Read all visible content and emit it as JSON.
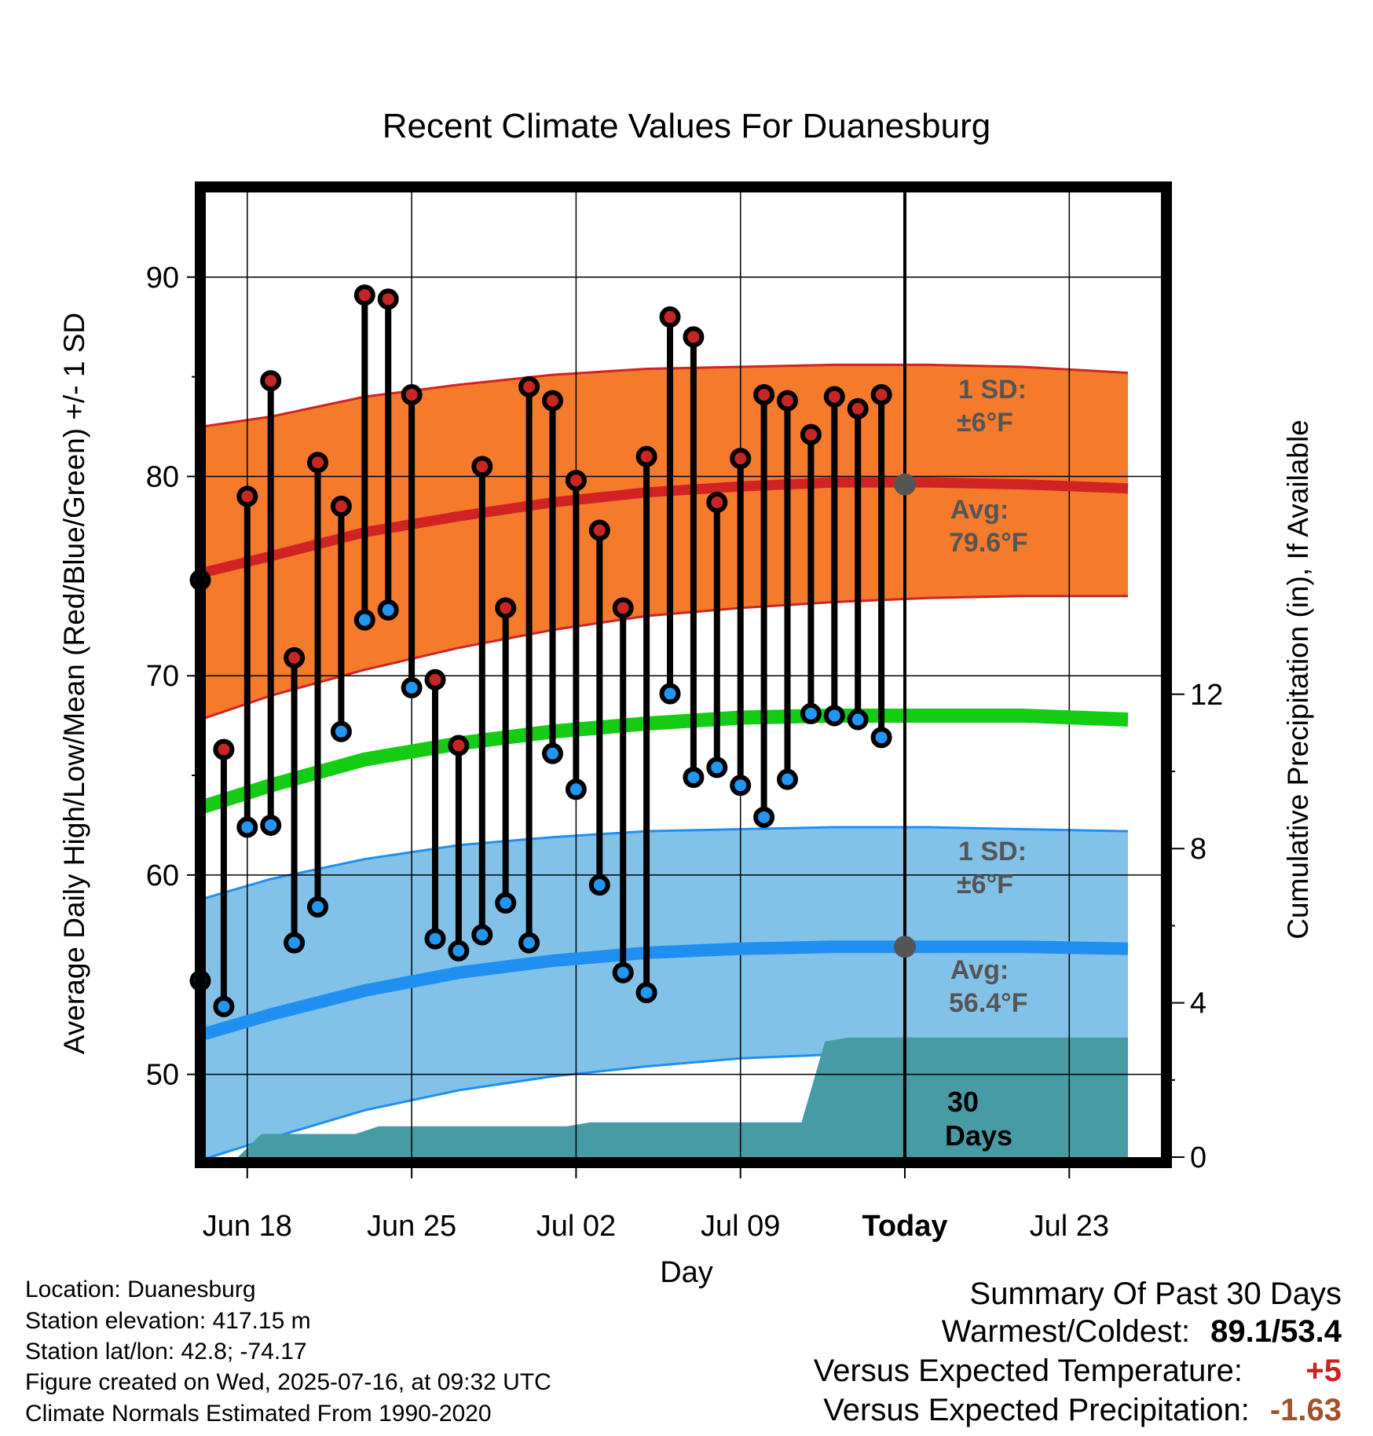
{
  "chart_data": {
    "type": "line",
    "title": "Recent Climate Values For Duanesburg",
    "xlabel": "Day",
    "ylabel": "Average Daily High/Low/Mean (Red/Blue/Green) +/- 1 SD",
    "y2label": "Cumulative Precipitation (in), If Available",
    "ylim": [
      45,
      95
    ],
    "y_ticks": [
      "50",
      "60",
      "70",
      "80",
      "90"
    ],
    "y2lim": [
      0,
      24
    ],
    "y2_ticks": [
      "0",
      "4",
      "8",
      "12"
    ],
    "x_ticks": [
      "Jun 18",
      "Jun 25",
      "Jul 02",
      "Jul 09",
      "Today",
      "Jul 23"
    ],
    "today_label": "Today",
    "period_label": [
      "30",
      "Days"
    ],
    "days": [
      "Jun 16",
      "Jun 17",
      "Jun 18",
      "Jun 19",
      "Jun 20",
      "Jun 21",
      "Jun 22",
      "Jun 23",
      "Jun 24",
      "Jun 25",
      "Jun 26",
      "Jun 27",
      "Jun 28",
      "Jun 29",
      "Jun 30",
      "Jul 01",
      "Jul 02",
      "Jul 03",
      "Jul 04",
      "Jul 05",
      "Jul 06",
      "Jul 07",
      "Jul 08",
      "Jul 09",
      "Jul 10",
      "Jul 11",
      "Jul 12",
      "Jul 13",
      "Jul 14",
      "Jul 15"
    ],
    "highs": [
      74.8,
      66.3,
      79.0,
      84.8,
      70.9,
      80.7,
      78.5,
      89.1,
      88.9,
      84.1,
      69.8,
      66.5,
      80.5,
      73.4,
      84.5,
      83.8,
      79.8,
      77.3,
      73.4,
      81.0,
      88.0,
      87.0,
      78.7,
      80.9,
      84.1,
      83.8,
      82.1,
      84.0,
      83.4,
      84.1
    ],
    "lows": [
      54.7,
      53.4,
      62.4,
      62.5,
      56.6,
      58.4,
      67.2,
      72.8,
      73.3,
      69.4,
      56.8,
      56.2,
      57.0,
      58.6,
      56.6,
      66.1,
      64.3,
      59.5,
      55.1,
      54.1,
      69.1,
      64.9,
      65.4,
      64.5,
      62.9,
      64.8,
      68.1,
      68.0,
      67.8,
      66.9
    ],
    "normals": {
      "x_days": [
        -0.5,
        3,
        7,
        11,
        15,
        19,
        23,
        27,
        31,
        35,
        39.5
      ],
      "high_avg": [
        75.0,
        76.0,
        77.2,
        78.0,
        78.7,
        79.2,
        79.5,
        79.7,
        79.7,
        79.6,
        79.4
      ],
      "high_sd_upper": [
        82.4,
        83.0,
        84.0,
        84.6,
        85.1,
        85.4,
        85.5,
        85.6,
        85.6,
        85.5,
        85.2
      ],
      "high_sd_lower": [
        67.6,
        69.0,
        70.3,
        71.4,
        72.3,
        73.0,
        73.4,
        73.7,
        73.9,
        74.0,
        74.0
      ],
      "mean_avg": [
        63.2,
        64.5,
        65.8,
        66.6,
        67.2,
        67.6,
        67.9,
        68.0,
        68.0,
        68.0,
        67.8
      ],
      "low_avg": [
        51.8,
        53.0,
        54.2,
        55.1,
        55.7,
        56.1,
        56.3,
        56.4,
        56.4,
        56.4,
        56.3
      ],
      "low_sd_upper": [
        58.6,
        59.8,
        60.8,
        61.5,
        61.9,
        62.2,
        62.3,
        62.4,
        62.4,
        62.3,
        62.2
      ],
      "low_sd_lower": [
        45.5,
        46.8,
        48.2,
        49.2,
        49.9,
        50.4,
        50.8,
        51.0,
        51.0,
        51.2,
        51.3
      ]
    },
    "precip_cumulative": {
      "x_days": [
        -0.5,
        1.6,
        2.6,
        6.6,
        7.6,
        15.6,
        16.6,
        25.6,
        26.6,
        27.6,
        39.5
      ],
      "values": [
        0,
        0,
        0.6,
        0.6,
        0.8,
        0.8,
        0.9,
        0.9,
        3.0,
        3.1,
        3.1
      ]
    },
    "high_sd_label": "1 SD:",
    "high_sd_value": "±6°F",
    "high_avg_label": "Avg:",
    "high_avg_value": "79.6°F",
    "low_sd_label": "1 SD:",
    "low_sd_value": "±6°F",
    "low_avg_label": "Avg:",
    "low_avg_value": "56.4°F",
    "grid": true,
    "colors": {
      "high_band": "#f47a2c",
      "high_line": "#d12323",
      "low_band": "#83c2e8",
      "low_line": "#1f8ff0",
      "mean_line": "#14cc14",
      "precip": "#479ba4",
      "high_marker": "#c82626",
      "low_marker": "#2196f3",
      "annotation": "#555555"
    }
  },
  "info": {
    "location": "Location: Duanesburg",
    "elevation": "Station elevation: 417.15 m",
    "latlon": "Station lat/lon: 42.8; -74.17",
    "created": "Figure created on Wed, 2025-07-16, at 09:32 UTC",
    "normals": "Climate Normals Estimated From 1990-2020"
  },
  "summary": {
    "title": "Summary Of Past 30 Days",
    "warm_cold_label": "Warmest/Coldest:",
    "warm_cold_value": "89.1/53.4",
    "temp_label": "Versus Expected Temperature:",
    "temp_value": "+5",
    "temp_color": "#cc2222",
    "precip_label": "Versus Expected Precipitation:",
    "precip_value": "-1.63",
    "precip_color": "#a0522d"
  }
}
